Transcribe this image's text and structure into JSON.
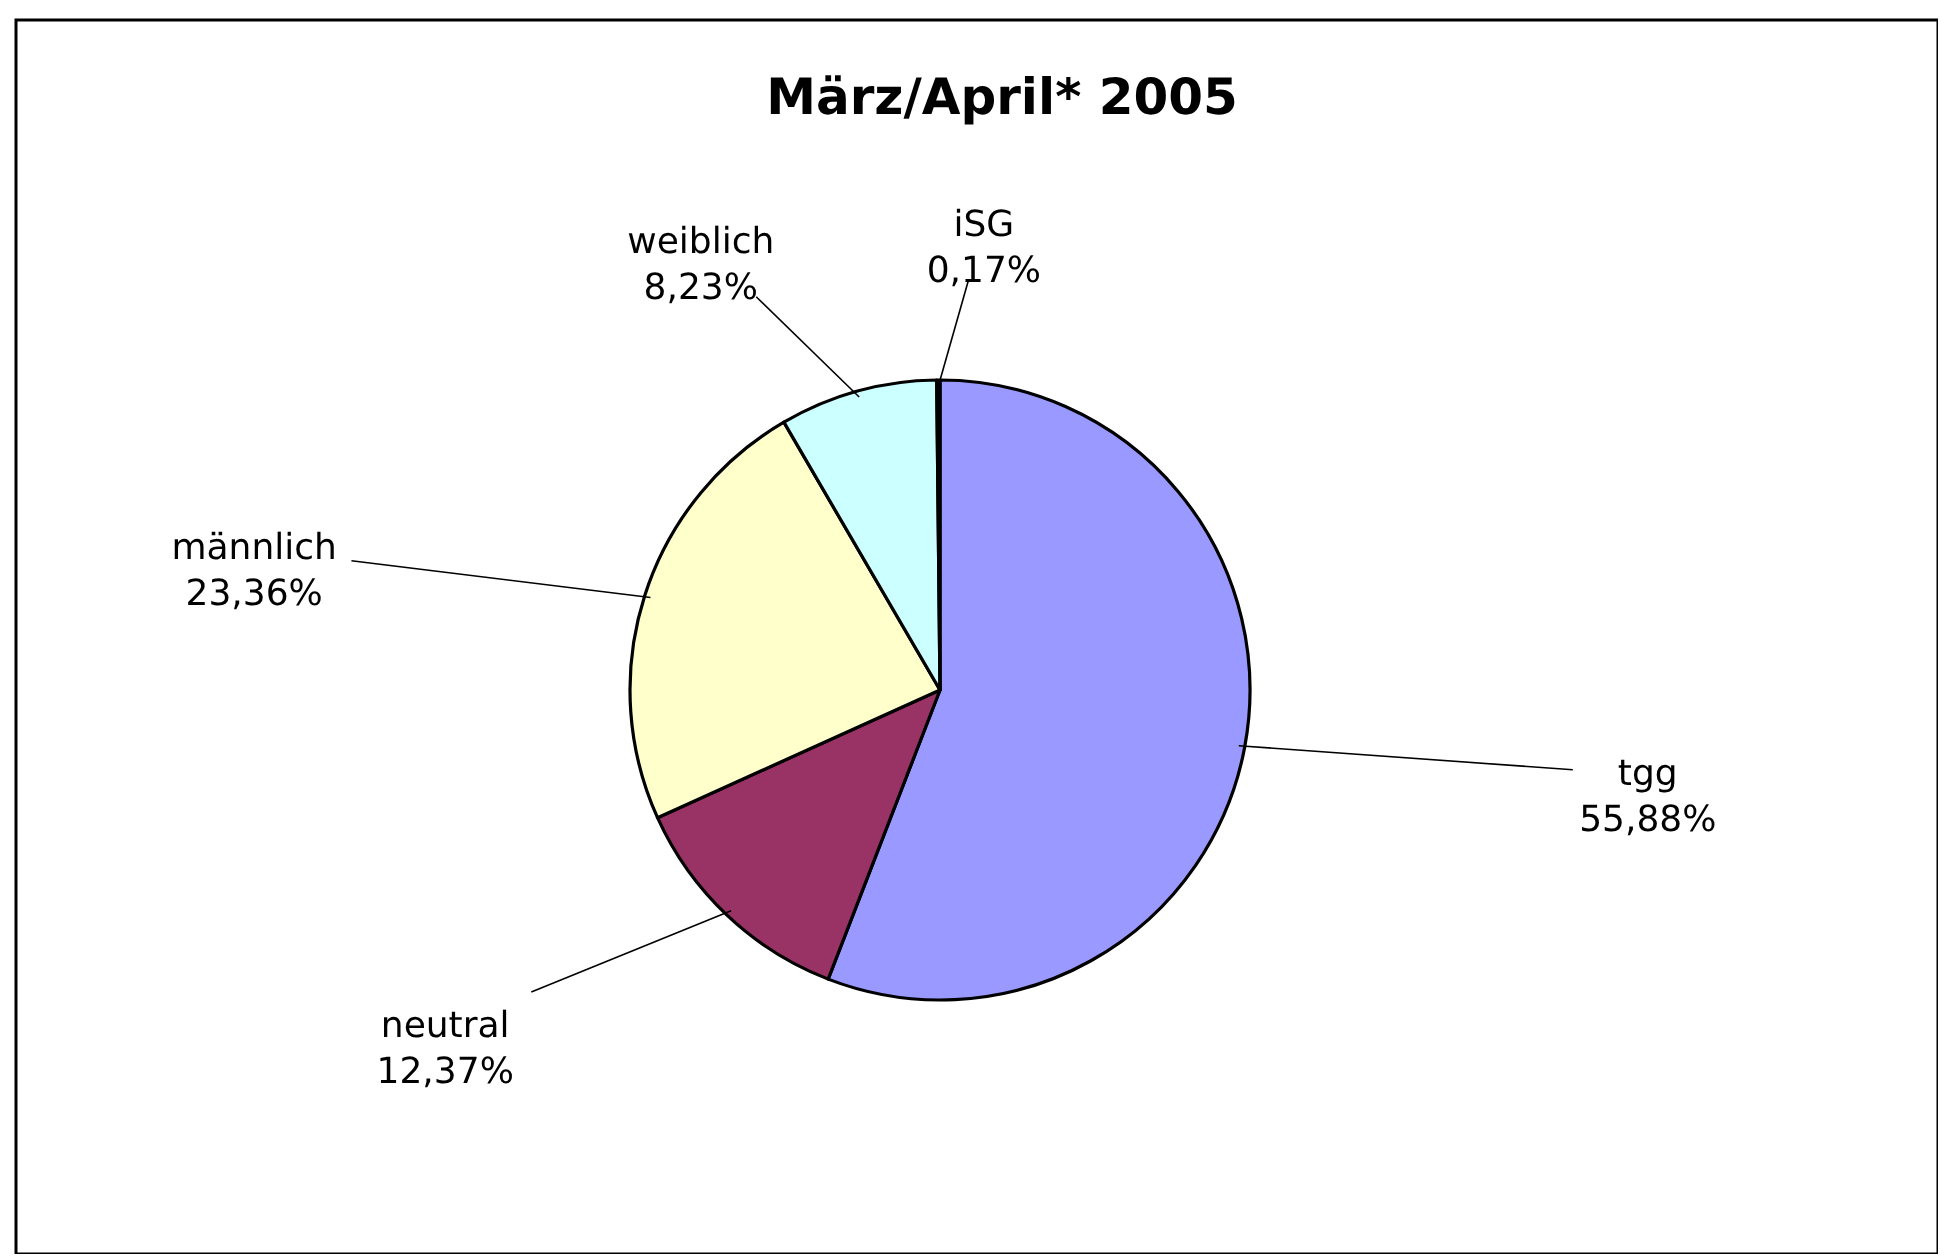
{
  "chart_data": {
    "type": "pie",
    "title": "März/April* 2005",
    "categories": [
      "tgg",
      "neutral",
      "männlich",
      "weiblich",
      "iSG"
    ],
    "values": [
      55.88,
      12.37,
      23.36,
      8.23,
      0.17
    ],
    "colors": [
      "#9999ff",
      "#993366",
      "#ffffcc",
      "#ccffff",
      "#660066"
    ],
    "value_labels": [
      "55,88%",
      "12,37%",
      "23,36%",
      "8,23%",
      "0,17%"
    ]
  }
}
